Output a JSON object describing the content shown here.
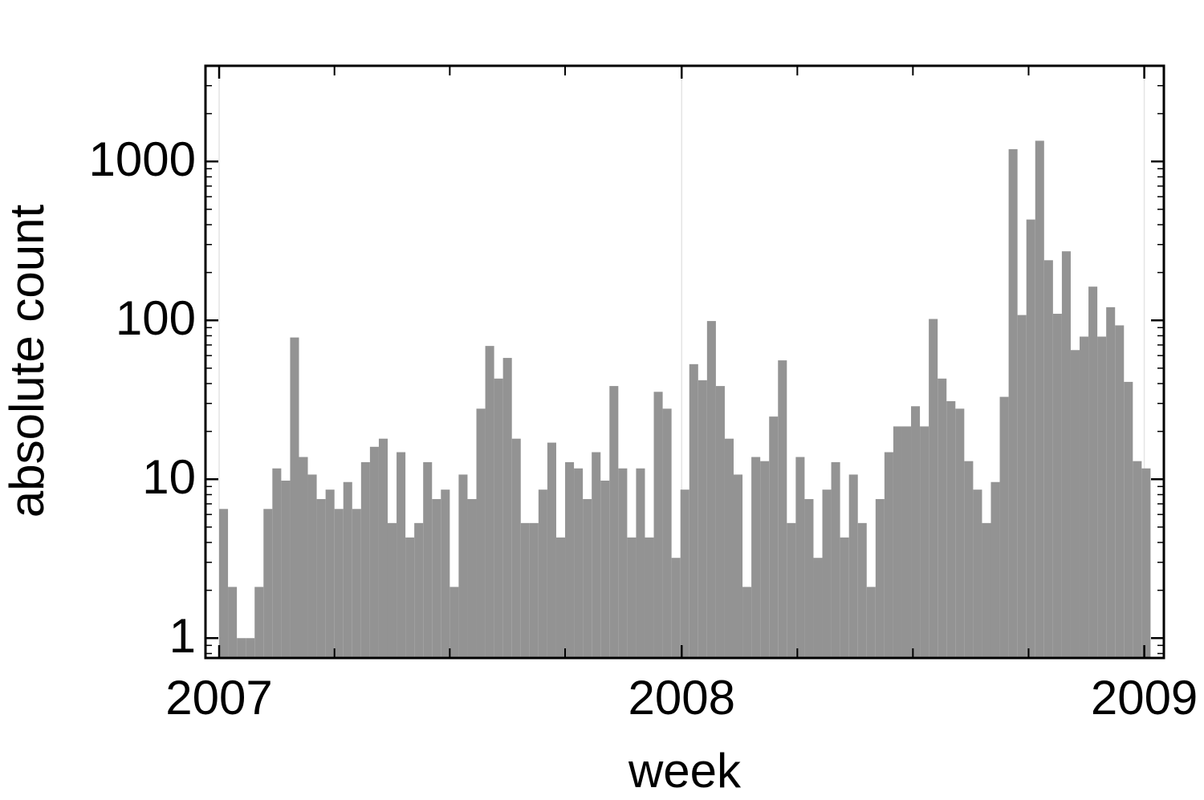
{
  "chart_data": {
    "type": "histogram",
    "xlabel": "week",
    "ylabel": "absolute count",
    "bins": [
      0,
      1,
      2,
      3,
      4,
      5,
      6,
      7,
      8,
      9,
      10,
      11,
      12,
      13,
      14,
      15,
      16,
      17,
      18,
      19,
      20,
      21,
      22,
      23,
      24,
      25,
      26,
      27,
      28,
      29,
      30,
      31,
      32,
      33,
      34,
      35,
      36,
      37,
      38,
      39,
      40,
      41,
      42,
      43,
      44,
      45,
      46,
      47,
      48,
      49,
      50,
      51,
      52,
      53,
      54,
      55,
      56,
      57,
      58,
      59,
      60,
      61,
      62,
      63,
      64,
      65,
      66,
      67,
      68,
      69,
      70,
      71,
      72,
      73,
      74,
      75,
      76,
      77,
      78,
      79,
      80,
      81,
      82,
      83,
      84,
      85,
      86,
      87,
      88,
      89,
      90,
      91,
      92,
      93,
      94,
      95,
      96,
      97,
      98,
      99,
      100,
      101,
      102,
      103,
      104,
      105
    ],
    "values": [
      6.5,
      2.1,
      1,
      1,
      2.1,
      6.5,
      11.7,
      9.8,
      78,
      13.8,
      10.7,
      7.5,
      8.6,
      6.5,
      9.6,
      6.5,
      12.8,
      16,
      18,
      5.3,
      14.8,
      4.3,
      5.3,
      12.8,
      7.5,
      8.6,
      2.1,
      10.7,
      7.5,
      27.8,
      69,
      43,
      58,
      18,
      5.3,
      5.3,
      8.6,
      17,
      4.3,
      12.8,
      11.7,
      7.5,
      14.8,
      9.8,
      38.6,
      11.7,
      4.3,
      11.7,
      4.3,
      35.5,
      27.8,
      3.2,
      8.6,
      53,
      42,
      99,
      38.6,
      18,
      10.7,
      2.1,
      13.8,
      13,
      24.8,
      56,
      5.3,
      13.8,
      7.5,
      3.2,
      8.6,
      12.8,
      4.3,
      10.7,
      5.3,
      2.1,
      7.5,
      14.8,
      21.5,
      21.5,
      28.8,
      21.5,
      102,
      43,
      31,
      27.8,
      13,
      8.6,
      5.3,
      9.6,
      33,
      1195,
      108,
      431,
      1350,
      239,
      110,
      272,
      65,
      79,
      163,
      79,
      121,
      93,
      41,
      13,
      11.7
    ],
    "color": "#939393",
    "xlim": [
      -1.54,
      106.5
    ],
    "xticks": [
      {
        "value": 0,
        "label": "2007"
      },
      {
        "value": 52.14,
        "label": "2008"
      },
      {
        "value": 104.29,
        "label": "2009"
      }
    ],
    "xminor_ticks": [
      13,
      26,
      39,
      65.18,
      78.21,
      91.25
    ],
    "ylim": [
      0.75,
      4000
    ],
    "log_y": true,
    "yticks": [
      1,
      10,
      100,
      1000
    ],
    "yminor_ticks": [
      0.8,
      0.9,
      2,
      3,
      4,
      5,
      6,
      7,
      8,
      9,
      20,
      30,
      40,
      50,
      60,
      70,
      80,
      90,
      200,
      300,
      400,
      500,
      600,
      700,
      800,
      900,
      2000,
      3000,
      4000
    ],
    "grid_x": true
  }
}
